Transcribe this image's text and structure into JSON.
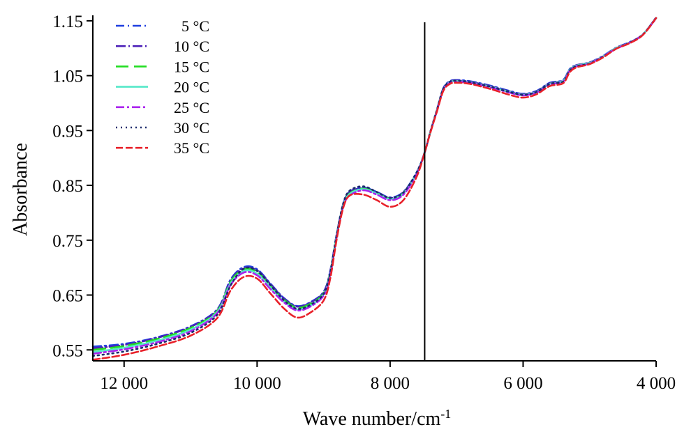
{
  "chart_data": {
    "type": "line",
    "xlabel": "Wave number/cm",
    "xlabel_sup": "-1",
    "ylabel": "Absorbance",
    "xlim": [
      12470,
      4000
    ],
    "ylim": [
      0.53,
      1.16
    ],
    "x_ticks": [
      {
        "value": 12000,
        "label": "12 000"
      },
      {
        "value": 10000,
        "label": "10 000"
      },
      {
        "value": 8000,
        "label": "8 000"
      },
      {
        "value": 6000,
        "label": "6 000"
      },
      {
        "value": 4000,
        "label": "4 000"
      }
    ],
    "y_ticks": [
      {
        "value": 1.15,
        "label": "1.15"
      },
      {
        "value": 1.05,
        "label": "1.05"
      },
      {
        "value": 0.95,
        "label": "0.95"
      },
      {
        "value": 0.85,
        "label": "0.85"
      },
      {
        "value": 0.75,
        "label": "0.75"
      },
      {
        "value": 0.65,
        "label": "0.65"
      },
      {
        "value": 0.55,
        "label": "0.55"
      }
    ],
    "reference_line_x": 7480,
    "legend_position": "top-left",
    "x": [
      12470,
      12000,
      11500,
      11000,
      10600,
      10400,
      10200,
      10000,
      9800,
      9600,
      9400,
      9200,
      9000,
      8900,
      8800,
      8700,
      8600,
      8400,
      8200,
      8000,
      7800,
      7600,
      7480,
      7400,
      7300,
      7200,
      7100,
      7000,
      6800,
      6500,
      6200,
      6000,
      5800,
      5600,
      5400,
      5300,
      5200,
      5000,
      4800,
      4600,
      4400,
      4200,
      4000
    ],
    "base_values": [
      0.548,
      0.555,
      0.568,
      0.588,
      0.62,
      0.672,
      0.695,
      0.69,
      0.665,
      0.64,
      0.625,
      0.632,
      0.652,
      0.69,
      0.76,
      0.815,
      0.835,
      0.843,
      0.835,
      0.825,
      0.835,
      0.872,
      0.91,
      0.945,
      0.985,
      1.025,
      1.038,
      1.04,
      1.038,
      1.03,
      1.02,
      1.015,
      1.02,
      1.035,
      1.04,
      1.06,
      1.068,
      1.073,
      1.085,
      1.1,
      1.11,
      1.125,
      1.155
    ],
    "series": [
      {
        "name": "5 °C",
        "color": "#1f3fe0",
        "dash": "12,5,2,5",
        "offsets": [
          0.008,
          0.006,
          0.005,
          0.005,
          0.004,
          0.006,
          0.006,
          0.007,
          0.006,
          0.005,
          0.005,
          0.005,
          0.004,
          0.004,
          0.003,
          0.003,
          0.004,
          0.003,
          0.003,
          0.003,
          0.003,
          0.002,
          0.0,
          0.0,
          0.001,
          0.002,
          0.002,
          0.002,
          0.002,
          0.002,
          0.002,
          0.002,
          0.002,
          0.002,
          0.002,
          0.002,
          0.001,
          0.001,
          0.001,
          0.001,
          0.001,
          0.0,
          0.001
        ]
      },
      {
        "name": "10 °C",
        "color": "#4b1fb8",
        "dash": "14,4,2,4",
        "offsets": [
          0.005,
          0.004,
          0.004,
          0.004,
          0.003,
          0.004,
          0.004,
          0.005,
          0.005,
          0.004,
          0.004,
          0.004,
          0.003,
          0.003,
          0.002,
          0.002,
          0.003,
          0.002,
          0.002,
          0.002,
          0.002,
          0.001,
          0.0,
          0.0,
          0.001,
          0.001,
          0.001,
          0.001,
          0.001,
          0.001,
          0.001,
          0.001,
          0.001,
          0.001,
          0.001,
          0.001,
          0.001,
          0.001,
          0.0,
          0.001,
          0.0,
          0.0,
          0.001
        ]
      },
      {
        "name": "15 °C",
        "color": "#22dd22",
        "dash": "18,8",
        "offsets": [
          0.002,
          0.002,
          0.002,
          0.002,
          0.001,
          0.002,
          0.002,
          0.002,
          0.002,
          0.002,
          0.002,
          0.002,
          0.001,
          0.001,
          0.001,
          0.001,
          0.001,
          0.001,
          0.001,
          0.001,
          0.001,
          0.0,
          0.0,
          0.0,
          0.0,
          0.0,
          0.0,
          0.0,
          0.0,
          0.0,
          0.0,
          0.0,
          0.0,
          0.0,
          0.0,
          0.0,
          0.0,
          0.0,
          0.0,
          0.0,
          0.0,
          0.0,
          0.0
        ]
      },
      {
        "name": "20 °C",
        "color": "#55e8c8",
        "dash": "",
        "offsets": [
          -0.002,
          -0.001,
          -0.001,
          -0.001,
          -0.001,
          -0.001,
          -0.001,
          -0.001,
          -0.001,
          -0.001,
          -0.001,
          -0.001,
          -0.001,
          -0.001,
          0.0,
          0.0,
          0.0,
          0.0,
          0.0,
          0.0,
          0.0,
          0.0,
          0.0,
          0.0,
          0.0,
          0.0,
          0.0,
          0.0,
          0.0,
          0.0,
          0.0,
          0.0,
          0.0,
          0.0,
          0.0,
          0.0,
          0.0,
          0.0,
          0.0,
          0.0,
          0.0,
          0.0,
          0.0
        ]
      },
      {
        "name": "25 °C",
        "color": "#aa22ee",
        "dash": "12,4,3,4",
        "offsets": [
          -0.005,
          -0.004,
          -0.004,
          -0.004,
          -0.003,
          -0.004,
          -0.004,
          -0.004,
          -0.004,
          -0.003,
          -0.003,
          -0.003,
          -0.003,
          -0.003,
          -0.002,
          -0.002,
          -0.003,
          -0.002,
          -0.002,
          -0.002,
          -0.002,
          -0.001,
          0.0,
          0.0,
          -0.001,
          -0.001,
          -0.001,
          -0.001,
          -0.001,
          -0.001,
          -0.001,
          -0.001,
          -0.001,
          -0.001,
          -0.001,
          -0.001,
          -0.001,
          -0.001,
          0.0,
          -0.001,
          0.0,
          0.0,
          -0.001
        ]
      },
      {
        "name": "30 °C",
        "color": "#1a2a6c",
        "dash": "2,5",
        "offsets": [
          -0.009,
          -0.008,
          -0.007,
          -0.007,
          -0.006,
          -0.005,
          0.003,
          0.004,
          0.003,
          0.001,
          0.0,
          0.0,
          0.0,
          0.001,
          0.002,
          0.004,
          0.006,
          0.005,
          0.003,
          0.002,
          0.002,
          0.002,
          0.0,
          0.001,
          0.001,
          0.001,
          0.001,
          0.001,
          0.0,
          0.0,
          0.0,
          0.0,
          0.0,
          0.0,
          -0.001,
          -0.001,
          -0.001,
          -0.001,
          -0.001,
          -0.001,
          0.0,
          0.0,
          0.0
        ]
      },
      {
        "name": "35 °C",
        "color": "#e8212a",
        "dash": "10,4",
        "offsets": [
          -0.016,
          -0.014,
          -0.012,
          -0.012,
          -0.012,
          -0.014,
          -0.012,
          -0.01,
          -0.012,
          -0.014,
          -0.016,
          -0.014,
          -0.012,
          -0.01,
          -0.006,
          -0.004,
          -0.003,
          -0.01,
          -0.012,
          -0.014,
          -0.012,
          -0.006,
          0.0,
          -0.001,
          -0.002,
          -0.003,
          -0.003,
          -0.003,
          -0.003,
          -0.004,
          -0.005,
          -0.005,
          -0.004,
          -0.004,
          -0.004,
          -0.004,
          -0.003,
          -0.002,
          -0.002,
          -0.001,
          -0.001,
          -0.001,
          0.0
        ]
      }
    ]
  }
}
